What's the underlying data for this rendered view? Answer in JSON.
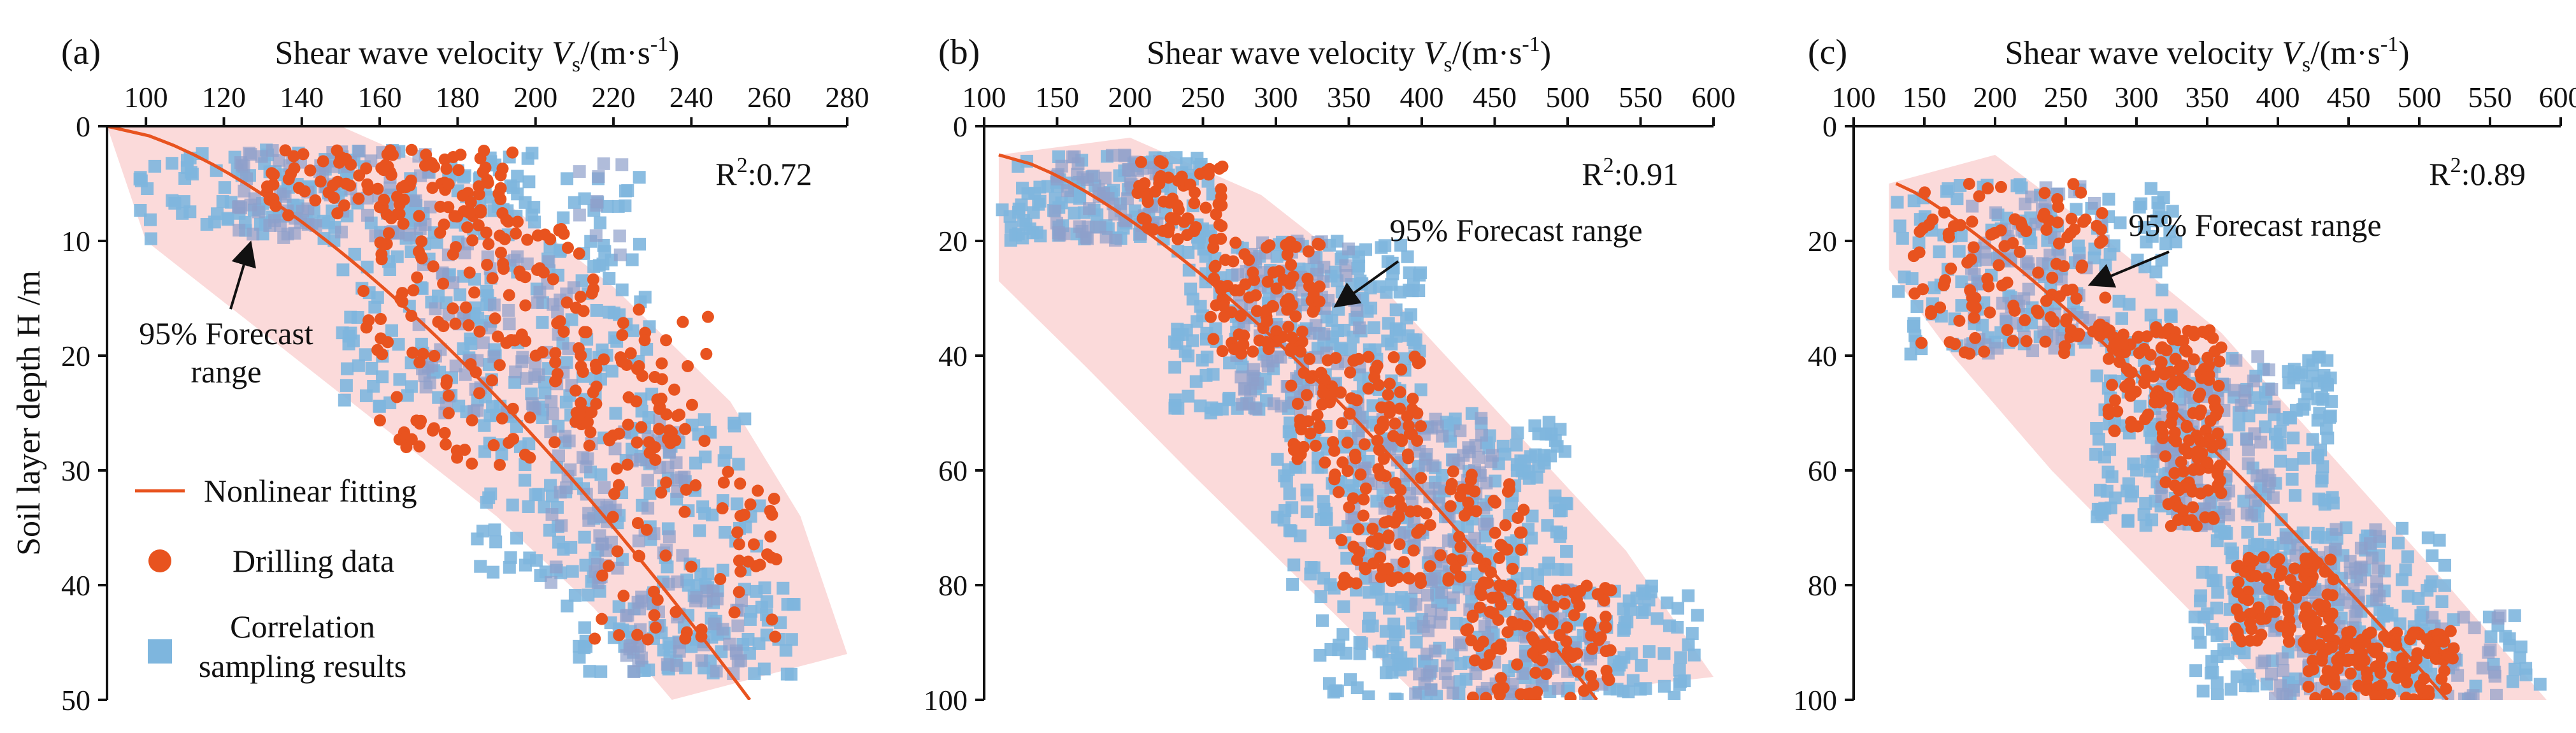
{
  "figure": {
    "ylabel": "Soil layer depth H /m",
    "xlabel_main": "Shear wave velocity ",
    "xlabel_sym": "V",
    "xlabel_sub": "s",
    "xlabel_unit_open": "/(m·s",
    "xlabel_unit_sup": "-1",
    "xlabel_unit_close": ")",
    "colors": {
      "fit": "#E8531F",
      "drilling": "#E8531F",
      "sampling": "#7EB6DE",
      "band": "#FAD4D4",
      "dense": "#8E9FCB"
    }
  },
  "legend": {
    "fit": "Nonlinear fitting",
    "drilling": "Drilling data",
    "sampling_line1": "Correlation",
    "sampling_line2": "sampling results"
  },
  "chart_data": [
    {
      "type": "scatter",
      "panel": "(a)",
      "r2_label": "R",
      "r2_sup": "2",
      "r2_value": ":0.72",
      "annotation_line1": "95% Forecast",
      "annotation_line2": "range",
      "xlim": [
        90,
        280
      ],
      "ylim": [
        0,
        50
      ],
      "xticks": [
        100,
        120,
        140,
        160,
        180,
        200,
        220,
        240,
        260,
        280
      ],
      "yticks": [
        0,
        10,
        20,
        30,
        40,
        50
      ],
      "fit": {
        "v0": 90,
        "vmax": 255,
        "h0": 0,
        "h1": 50,
        "p": 1.5
      },
      "band": [
        [
          90,
          0,
          90,
          0
        ],
        [
          100,
          10,
          150,
          0
        ],
        [
          130,
          18,
          190,
          6
        ],
        [
          160,
          26,
          220,
          14
        ],
        [
          190,
          34,
          250,
          24
        ],
        [
          215,
          42,
          268,
          34
        ],
        [
          235,
          50,
          280,
          46
        ]
      ],
      "series": [
        {
          "name": "Drilling data",
          "clusters": [
            {
              "h": [
                2,
                8
              ],
              "v": [
                130,
                195
              ],
              "n": 110
            },
            {
              "h": [
                8,
                20
              ],
              "v": [
                155,
                215
              ],
              "n": 95
            },
            {
              "h": [
                20,
                30
              ],
              "v": [
                170,
                235
              ],
              "n": 70
            },
            {
              "h": [
                15,
                28
              ],
              "v": [
                210,
                245
              ],
              "n": 40
            },
            {
              "h": [
                30,
                45
              ],
              "v": [
                215,
                262
              ],
              "n": 60
            },
            {
              "h": [
                22,
                28
              ],
              "v": [
                160,
                180
              ],
              "n": 15
            }
          ]
        },
        {
          "name": "Correlation sampling results",
          "clusters": [
            {
              "h": [
                2,
                10
              ],
              "v": [
                98,
                200
              ],
              "n": 160
            },
            {
              "h": [
                10,
                25
              ],
              "v": [
                150,
                230
              ],
              "n": 150
            },
            {
              "h": [
                25,
                40
              ],
              "v": [
                185,
                260
              ],
              "n": 140
            },
            {
              "h": [
                40,
                48
              ],
              "v": [
                208,
                268
              ],
              "n": 90
            },
            {
              "h": [
                3,
                12
              ],
              "v": [
                205,
                230
              ],
              "n": 20
            }
          ]
        }
      ]
    },
    {
      "type": "scatter",
      "panel": "(b)",
      "r2_label": "R",
      "r2_sup": "2",
      "r2_value": ":0.91",
      "annotation_line1": "95% Forecast range",
      "annotation_line2": "",
      "xlim": [
        100,
        600
      ],
      "ylim": [
        0,
        100
      ],
      "xticks": [
        100,
        150,
        200,
        250,
        300,
        350,
        400,
        450,
        500,
        550,
        600
      ],
      "yticks": [
        0,
        20,
        40,
        60,
        80,
        100
      ],
      "fit": {
        "v0": 110,
        "vmax": 520,
        "h0": 5,
        "h1": 100,
        "p": 1.4
      },
      "band": [
        [
          110,
          5,
          110,
          5
        ],
        [
          110,
          27,
          200,
          2
        ],
        [
          170,
          42,
          290,
          12
        ],
        [
          240,
          60,
          380,
          30
        ],
        [
          320,
          80,
          460,
          52
        ],
        [
          400,
          100,
          540,
          74
        ],
        [
          460,
          100,
          600,
          96
        ]
      ],
      "series": [
        {
          "name": "Drilling data",
          "clusters": [
            {
              "h": [
                6,
                20
              ],
              "v": [
                205,
                265
              ],
              "n": 60
            },
            {
              "h": [
                20,
                40
              ],
              "v": [
                255,
                330
              ],
              "n": 90
            },
            {
              "h": [
                40,
                60
              ],
              "v": [
                310,
                400
              ],
              "n": 90
            },
            {
              "h": [
                60,
                80
              ],
              "v": [
                340,
                470
              ],
              "n": 110
            },
            {
              "h": [
                80,
                100
              ],
              "v": [
                430,
                530
              ],
              "n": 110
            }
          ]
        },
        {
          "name": "Correlation sampling results",
          "clusters": [
            {
              "h": [
                5,
                20
              ],
              "v": [
                110,
                260
              ],
              "n": 120
            },
            {
              "h": [
                20,
                50
              ],
              "v": [
                230,
                400
              ],
              "n": 220
            },
            {
              "h": [
                50,
                80
              ],
              "v": [
                300,
                500
              ],
              "n": 220
            },
            {
              "h": [
                80,
                100
              ],
              "v": [
                330,
                590
              ],
              "n": 200
            }
          ]
        }
      ]
    },
    {
      "type": "scatter",
      "panel": "(c)",
      "r2_label": "R",
      "r2_sup": "2",
      "r2_value": ":0.89",
      "annotation_line1": "95% Forecast range",
      "annotation_line2": "",
      "xlim": [
        100,
        600
      ],
      "ylim": [
        0,
        100
      ],
      "xticks": [
        100,
        150,
        200,
        250,
        300,
        350,
        400,
        450,
        500,
        550,
        600
      ],
      "yticks": [
        0,
        20,
        40,
        60,
        80,
        100
      ],
      "fit": {
        "v0": 130,
        "vmax": 520,
        "h0": 10,
        "h1": 100,
        "p": 1.2
      },
      "band": [
        [
          125,
          10,
          125,
          10
        ],
        [
          125,
          25,
          200,
          5
        ],
        [
          170,
          40,
          270,
          18
        ],
        [
          240,
          60,
          360,
          36
        ],
        [
          320,
          80,
          440,
          58
        ],
        [
          400,
          100,
          520,
          80
        ],
        [
          450,
          100,
          590,
          100
        ]
      ],
      "series": [
        {
          "name": "Drilling data",
          "clusters": [
            {
              "h": [
                10,
                40
              ],
              "v": [
                140,
                280
              ],
              "n": 120
            },
            {
              "h": [
                35,
                55
              ],
              "v": [
                280,
                360
              ],
              "n": 130
            },
            {
              "h": [
                55,
                70
              ],
              "v": [
                320,
                360
              ],
              "n": 50
            },
            {
              "h": [
                75,
                90
              ],
              "v": [
                370,
                440
              ],
              "n": 100
            },
            {
              "h": [
                88,
                100
              ],
              "v": [
                420,
                525
              ],
              "n": 130
            }
          ]
        },
        {
          "name": "Correlation sampling results",
          "clusters": [
            {
              "h": [
                10,
                40
              ],
              "v": [
                130,
                330
              ],
              "n": 160
            },
            {
              "h": [
                40,
                70
              ],
              "v": [
                270,
                440
              ],
              "n": 200
            },
            {
              "h": [
                70,
                100
              ],
              "v": [
                340,
                520
              ],
              "n": 220
            },
            {
              "h": [
                85,
                100
              ],
              "v": [
                480,
                590
              ],
              "n": 40
            }
          ]
        }
      ]
    }
  ]
}
